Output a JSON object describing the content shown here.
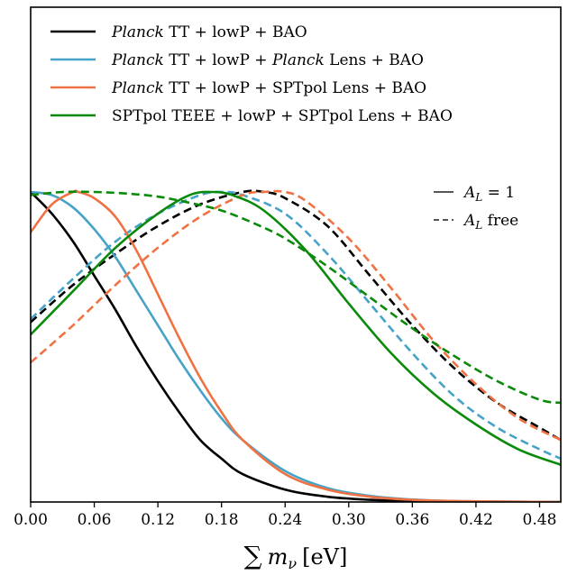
{
  "chart_data": {
    "type": "line",
    "title": "",
    "xlabel": "∑ m_ν [eV]",
    "ylabel": "",
    "xlim": [
      0.0,
      0.5
    ],
    "ylim": [
      0.0,
      1.0
    ],
    "xticks": [
      "0.00",
      "0.06",
      "0.12",
      "0.18",
      "0.24",
      "0.30",
      "0.36",
      "0.42",
      "0.48"
    ],
    "yticks": [],
    "grid": false,
    "legend_position": "top-left",
    "legend_entries": [
      {
        "series": "Planck TT + lowP + BAO",
        "italic_prefix": "Planck",
        "rest": " TT + lowP + BAO",
        "color": "#000000"
      },
      {
        "series": "Planck TT + lowP + Planck Lens + BAO",
        "italic_prefix": "Planck",
        "rest": " TT + lowP + ",
        "italic_mid": "Planck",
        "rest2": " Lens + BAO",
        "color": "#46a3c7"
      },
      {
        "series": "Planck TT + lowP + SPTpol Lens + BAO",
        "italic_prefix": "Planck",
        "rest": " TT + lowP + SPTpol Lens + BAO",
        "color": "#f07243"
      },
      {
        "series": "SPTpol TEEE + lowP + SPTpol Lens + BAO",
        "italic_prefix": "",
        "rest": "SPTpol TEEE + lowP + SPTpol Lens + BAO",
        "color": "#0a8a0a"
      }
    ],
    "style_legend": {
      "solid_label_a": "A",
      "solid_label_sub": "L",
      "solid_label_eq": " = 1",
      "dashed_label_a": "A",
      "dashed_label_sub": "L",
      "dashed_label_rest": " free",
      "position": "right"
    },
    "series": [
      {
        "name": "Planck TT + lowP + BAO",
        "style": "solid",
        "color": "#000000",
        "x": [
          0.0,
          0.02,
          0.04,
          0.06,
          0.08,
          0.1,
          0.12,
          0.14,
          0.16,
          0.18,
          0.2,
          0.24,
          0.28,
          0.32,
          0.36,
          0.4,
          0.5
        ],
        "y": [
          1.0,
          0.93,
          0.84,
          0.73,
          0.62,
          0.5,
          0.39,
          0.29,
          0.2,
          0.14,
          0.09,
          0.04,
          0.017,
          0.007,
          0.003,
          0.001,
          0.0
        ]
      },
      {
        "name": "Planck TT + lowP + BAO",
        "style": "dashed",
        "color": "#000000",
        "x": [
          0.0,
          0.04,
          0.08,
          0.12,
          0.16,
          0.2,
          0.22,
          0.24,
          0.28,
          0.32,
          0.36,
          0.4,
          0.44,
          0.48,
          0.5
        ],
        "y": [
          0.58,
          0.7,
          0.8,
          0.89,
          0.96,
          1.0,
          1.0,
          0.98,
          0.89,
          0.73,
          0.57,
          0.43,
          0.32,
          0.24,
          0.2
        ]
      },
      {
        "name": "Planck TT + lowP + Planck Lens + BAO",
        "style": "solid",
        "color": "#46a3c7",
        "x": [
          0.0,
          0.02,
          0.04,
          0.06,
          0.08,
          0.1,
          0.12,
          0.14,
          0.16,
          0.18,
          0.2,
          0.24,
          0.28,
          0.32,
          0.36,
          0.4,
          0.5
        ],
        "y": [
          1.0,
          0.99,
          0.95,
          0.88,
          0.79,
          0.68,
          0.57,
          0.46,
          0.36,
          0.27,
          0.2,
          0.1,
          0.045,
          0.02,
          0.008,
          0.003,
          0.0
        ]
      },
      {
        "name": "Planck TT + lowP + Planck Lens + BAO",
        "style": "dashed",
        "color": "#46a3c7",
        "x": [
          0.0,
          0.04,
          0.08,
          0.12,
          0.16,
          0.18,
          0.2,
          0.24,
          0.28,
          0.32,
          0.36,
          0.4,
          0.44,
          0.48,
          0.5
        ],
        "y": [
          0.59,
          0.72,
          0.84,
          0.93,
          0.99,
          1.0,
          0.99,
          0.93,
          0.8,
          0.64,
          0.48,
          0.34,
          0.24,
          0.17,
          0.14
        ]
      },
      {
        "name": "Planck TT + lowP + SPTpol Lens + BAO",
        "style": "solid",
        "color": "#f07243",
        "x": [
          0.0,
          0.02,
          0.04,
          0.045,
          0.06,
          0.08,
          0.1,
          0.12,
          0.14,
          0.16,
          0.18,
          0.2,
          0.24,
          0.28,
          0.32,
          0.36,
          0.4,
          0.5
        ],
        "y": [
          0.87,
          0.96,
          1.0,
          1.0,
          0.98,
          0.92,
          0.81,
          0.67,
          0.53,
          0.4,
          0.29,
          0.2,
          0.09,
          0.04,
          0.017,
          0.007,
          0.003,
          0.0
        ]
      },
      {
        "name": "Planck TT + lowP + SPTpol Lens + BAO",
        "style": "dashed",
        "color": "#f07243",
        "x": [
          0.0,
          0.04,
          0.08,
          0.12,
          0.16,
          0.2,
          0.22,
          0.24,
          0.26,
          0.3,
          0.34,
          0.38,
          0.42,
          0.46,
          0.5
        ],
        "y": [
          0.45,
          0.57,
          0.7,
          0.82,
          0.92,
          0.99,
          1.0,
          1.0,
          0.97,
          0.85,
          0.69,
          0.52,
          0.38,
          0.27,
          0.2
        ]
      },
      {
        "name": "SPTpol TEEE + lowP + SPTpol Lens + BAO",
        "style": "solid",
        "color": "#0a8a0a",
        "x": [
          0.0,
          0.04,
          0.08,
          0.12,
          0.15,
          0.17,
          0.19,
          0.22,
          0.26,
          0.3,
          0.34,
          0.38,
          0.42,
          0.46,
          0.5
        ],
        "y": [
          0.54,
          0.68,
          0.82,
          0.93,
          0.99,
          1.0,
          0.99,
          0.94,
          0.81,
          0.64,
          0.48,
          0.35,
          0.25,
          0.17,
          0.12
        ]
      },
      {
        "name": "SPTpol TEEE + lowP + SPTpol Lens + BAO",
        "style": "dashed",
        "color": "#0a8a0a",
        "x": [
          0.0,
          0.03,
          0.06,
          0.09,
          0.12,
          0.15,
          0.18,
          0.21,
          0.24,
          0.28,
          0.32,
          0.36,
          0.4,
          0.44,
          0.48,
          0.5
        ],
        "y": [
          0.99,
          1.0,
          1.0,
          0.995,
          0.985,
          0.965,
          0.94,
          0.9,
          0.85,
          0.76,
          0.66,
          0.56,
          0.47,
          0.39,
          0.33,
          0.32
        ]
      }
    ]
  }
}
